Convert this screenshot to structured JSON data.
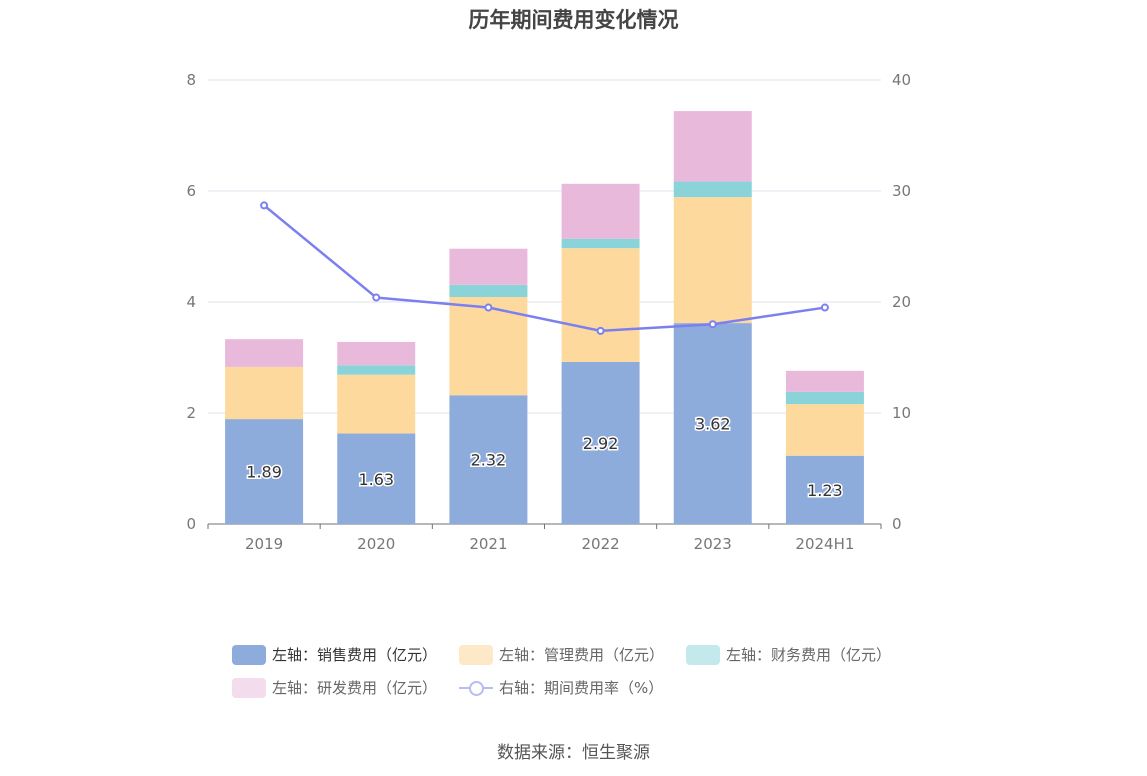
{
  "chart_data": {
    "type": "bar",
    "title": "历年期间费用变化情况",
    "categories": [
      "2019",
      "2020",
      "2021",
      "2022",
      "2023",
      "2024H1"
    ],
    "stacked": true,
    "left_axis": {
      "ylim": [
        0,
        8
      ],
      "ticks": [
        "0",
        "2",
        "4",
        "6",
        "8"
      ]
    },
    "right_axis": {
      "ylim": [
        0,
        40
      ],
      "ticks": [
        "0",
        "10",
        "20",
        "30",
        "40"
      ]
    },
    "grid": true,
    "legend_position": "bottom",
    "series": [
      {
        "name": "左轴：销售费用（亿元）",
        "axis": "left",
        "type": "bar",
        "color": "#8eacdb",
        "values": [
          1.89,
          1.63,
          2.32,
          2.92,
          3.62,
          1.23
        ],
        "labels": [
          "1.89",
          "1.63",
          "2.32",
          "2.92",
          "3.62",
          "1.23"
        ]
      },
      {
        "name": "左轴：管理费用（亿元）",
        "axis": "left",
        "type": "bar",
        "color": "#fdd99d",
        "values": [
          0.94,
          1.06,
          1.77,
          2.05,
          2.27,
          0.93
        ]
      },
      {
        "name": "左轴：财务费用（亿元）",
        "axis": "left",
        "type": "bar",
        "color": "#89d3d9",
        "values": [
          0.0,
          0.17,
          0.22,
          0.17,
          0.28,
          0.22
        ]
      },
      {
        "name": "左轴：研发费用（亿元）",
        "axis": "left",
        "type": "bar",
        "color": "#e8b9da",
        "values": [
          0.5,
          0.42,
          0.65,
          0.99,
          1.27,
          0.38
        ]
      },
      {
        "name": "右轴：期间费用率（%）",
        "axis": "right",
        "type": "line",
        "color": "#7b7ff0",
        "values": [
          28.7,
          20.4,
          19.5,
          17.4,
          18.0,
          19.5
        ]
      }
    ]
  },
  "source": "数据来源：恒生聚源"
}
